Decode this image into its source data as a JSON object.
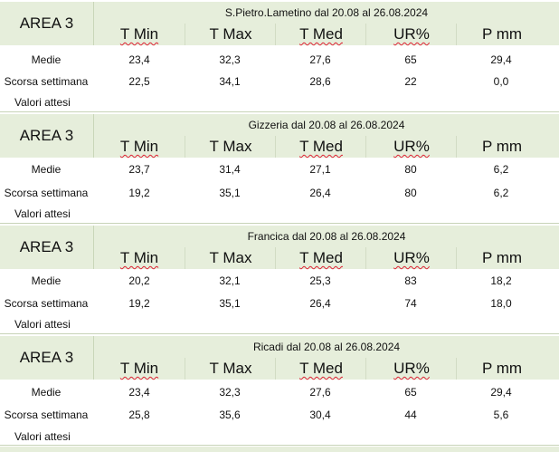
{
  "columns": [
    "T Min",
    "T Max",
    "T Med",
    "UR%",
    "P mm"
  ],
  "row_labels": {
    "medie": "Medie",
    "scorsa": "Scorsa settimana",
    "attesi": "Valori attesi"
  },
  "header_bg": "#e6eedb",
  "sections": [
    {
      "area": "AREA 3",
      "title": "S.Pietro.Lametino dal 20.08 al 26.08.2024",
      "medie": [
        "23,4",
        "32,3",
        "27,6",
        "65",
        "29,4"
      ],
      "scorsa": [
        "22,5",
        "34,1",
        "28,6",
        "22",
        "0,0"
      ]
    },
    {
      "area": "AREA 3",
      "title": "Gizzeria dal 20.08 al 26.08.2024",
      "medie": [
        "23,7",
        "31,4",
        "27,1",
        "80",
        "6,2"
      ],
      "scorsa": [
        "19,2",
        "35,1",
        "26,4",
        "80",
        "6,2"
      ]
    },
    {
      "area": "AREA 3",
      "title": "Francica dal 20.08 al 26.08.2024",
      "medie": [
        "20,2",
        "32,1",
        "25,3",
        "83",
        "18,2"
      ],
      "scorsa": [
        "19,2",
        "35,1",
        "26,4",
        "74",
        "18,0"
      ]
    },
    {
      "area": "AREA 3",
      "title": "Ricadi  dal 20.08 al 26.08.2024",
      "medie": [
        "23,4",
        "32,3",
        "27,6",
        "65",
        "29,4"
      ],
      "scorsa": [
        "25,8",
        "35,6",
        "30,4",
        "44",
        "5,6"
      ]
    }
  ]
}
